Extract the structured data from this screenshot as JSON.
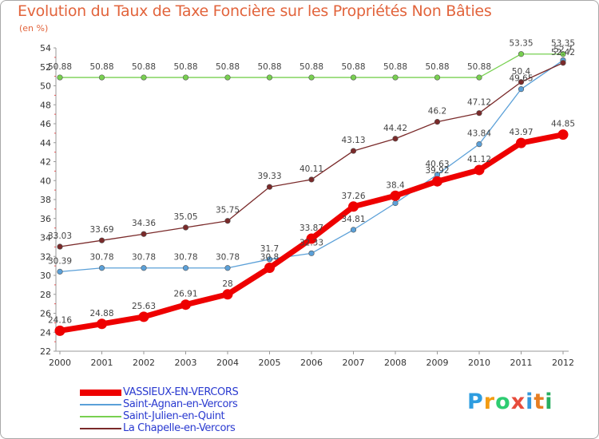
{
  "header": {
    "title": "Evolution du Taux de Taxe Foncière sur les Propriétés Non Bâties",
    "unit": "(en %)"
  },
  "logo": {
    "text": "Proxiti",
    "colors": [
      "#2e9de0",
      "#f39c12",
      "#2ecc71",
      "#e74c3c",
      "#3498db",
      "#e67e22",
      "#27ae60"
    ]
  },
  "chart_data": {
    "type": "line",
    "x": [
      "2000",
      "2001",
      "2002",
      "2003",
      "2004",
      "2005",
      "2006",
      "2007",
      "2008",
      "2009",
      "2010",
      "2011",
      "2012"
    ],
    "ylim": [
      22,
      54
    ],
    "yticks": [
      22,
      24,
      26,
      28,
      30,
      32,
      34,
      36,
      38,
      40,
      42,
      44,
      46,
      48,
      50,
      52,
      54
    ],
    "grid": false,
    "legend_position": "bottom-left",
    "series": [
      {
        "name": "VASSIEUX-EN-VERCORS",
        "color": "#ee0000",
        "values": [
          24.16,
          24.88,
          25.63,
          26.91,
          28,
          30.8,
          33.87,
          37.26,
          38.4,
          39.92,
          41.12,
          43.97,
          44.85
        ],
        "labels": [
          "24.16",
          "24.88",
          "25.63",
          "26.91",
          "28",
          "30.8",
          "33.87",
          "37.26",
          "38.4",
          "39.92",
          "41.12",
          "43.97",
          "44.85"
        ]
      },
      {
        "name": "Saint-Agnan-en-Vercors",
        "color": "#5ba0d8",
        "values": [
          30.39,
          30.78,
          30.78,
          30.78,
          30.78,
          31.7,
          32.33,
          34.81,
          37.62,
          40.63,
          43.84,
          49.65,
          52.7
        ],
        "labels": [
          "30.39",
          "30.78",
          "30.78",
          "30.78",
          "30.78",
          "31.7",
          "32.33",
          "34.81",
          "",
          "40.63",
          "43.84",
          "49.65",
          "52.7"
        ]
      },
      {
        "name": "Saint-Julien-en-Quint",
        "color": "#78d050",
        "values": [
          50.88,
          50.88,
          50.88,
          50.88,
          50.88,
          50.88,
          50.88,
          50.88,
          50.88,
          50.88,
          50.88,
          53.35,
          53.35
        ],
        "labels": [
          "50.88",
          "50.88",
          "50.88",
          "50.88",
          "50.88",
          "50.88",
          "50.88",
          "50.88",
          "50.88",
          "50.88",
          "50.88",
          "53.35",
          "53.35"
        ]
      },
      {
        "name": "La Chapelle-en-Vercors",
        "color": "#7a2a2a",
        "values": [
          33.03,
          33.69,
          34.36,
          35.05,
          35.75,
          39.33,
          40.11,
          43.13,
          44.42,
          46.2,
          47.12,
          50.4,
          52.42
        ],
        "labels": [
          "33.03",
          "33.69",
          "34.36",
          "35.05",
          "35.75",
          "39.33",
          "40.11",
          "43.13",
          "44.42",
          "46.2",
          "47.12",
          "50.4",
          "52.42"
        ]
      }
    ]
  }
}
